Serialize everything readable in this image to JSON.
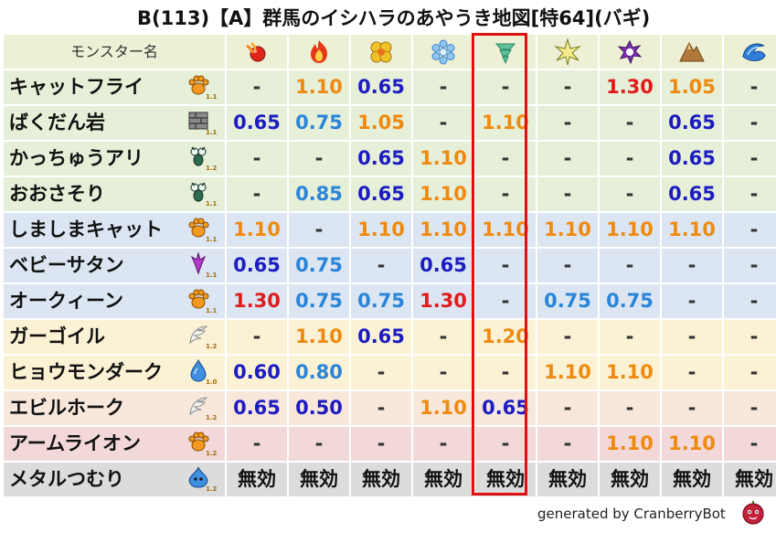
{
  "title": "B(113)【A】群馬のイシハラのあやうき地図[特64](バギ)",
  "header_label": "モンスター名",
  "columns": [
    {
      "icon": "fire-icon"
    },
    {
      "icon": "flame-icon"
    },
    {
      "icon": "explosion-icon"
    },
    {
      "icon": "ice-icon"
    },
    {
      "icon": "wind-icon"
    },
    {
      "icon": "lightning-icon"
    },
    {
      "icon": "darkness-icon"
    },
    {
      "icon": "earth-icon"
    },
    {
      "icon": "water-icon"
    }
  ],
  "highlighted_column": 4,
  "colors": {
    "header_bg": "#eef0d6",
    "row_green": "#e6efd8",
    "row_blue": "#dbe6f2",
    "row_yellow": "#fbf1d4",
    "row_peach": "#f8e8dc",
    "row_pink": "#f2d8d8",
    "row_gray": "#dcdcdc",
    "val_red": "#e11b1b",
    "val_orange": "#ee8a0f",
    "val_blue": "#2a84d8",
    "val_navy": "#1c1cc2",
    "val_dash": "#333333",
    "highlight": "#e01010"
  },
  "rows": [
    {
      "name": "キャットフライ",
      "family": "paw-icon",
      "level": "1.1",
      "bg": "green",
      "values": [
        "-",
        "1.10",
        "0.65",
        "-",
        "-",
        "-",
        "1.30",
        "1.05",
        "-"
      ]
    },
    {
      "name": "ばくだん岩",
      "family": "brick-icon",
      "level": "1.1",
      "bg": "green",
      "values": [
        "0.65",
        "0.75",
        "1.05",
        "-",
        "1.10",
        "-",
        "-",
        "0.65",
        "-"
      ]
    },
    {
      "name": "かっちゅうアリ",
      "family": "insect-icon",
      "level": "1.2",
      "bg": "green",
      "values": [
        "-",
        "-",
        "0.65",
        "1.10",
        "-",
        "-",
        "-",
        "0.65",
        "-"
      ]
    },
    {
      "name": "おおさそり",
      "family": "insect-icon",
      "level": "1.1",
      "bg": "green",
      "values": [
        "-",
        "0.85",
        "0.65",
        "1.10",
        "-",
        "-",
        "-",
        "0.65",
        "-"
      ]
    },
    {
      "name": "しましまキャット",
      "family": "paw-icon",
      "level": "1.1",
      "bg": "blue",
      "values": [
        "1.10",
        "-",
        "1.10",
        "1.10",
        "1.10",
        "1.10",
        "1.10",
        "1.10",
        "-"
      ]
    },
    {
      "name": "ベビーサタン",
      "family": "demon-icon",
      "level": "1.1",
      "bg": "blue",
      "values": [
        "0.65",
        "0.75",
        "-",
        "0.65",
        "-",
        "-",
        "-",
        "-",
        "-"
      ]
    },
    {
      "name": "オークィーン",
      "family": "paw-icon",
      "level": "1.1",
      "bg": "blue",
      "values": [
        "1.30",
        "0.75",
        "0.75",
        "1.30",
        "-",
        "0.75",
        "0.75",
        "-",
        "-"
      ]
    },
    {
      "name": "ガーゴイル",
      "family": "wing-icon",
      "level": "1.2",
      "bg": "yellow",
      "values": [
        "-",
        "1.10",
        "0.65",
        "-",
        "1.20",
        "-",
        "-",
        "-",
        "-"
      ]
    },
    {
      "name": "ヒョウモンダーク",
      "family": "drop-icon",
      "level": "1.0",
      "bg": "yellow",
      "values": [
        "0.60",
        "0.80",
        "-",
        "-",
        "-",
        "1.10",
        "1.10",
        "-",
        "-"
      ]
    },
    {
      "name": "エビルホーク",
      "family": "wing-icon",
      "level": "1.2",
      "bg": "peach",
      "values": [
        "0.65",
        "0.50",
        "-",
        "1.10",
        "0.65",
        "-",
        "-",
        "-",
        "-"
      ]
    },
    {
      "name": "アームライオン",
      "family": "paw-icon",
      "level": "1.2",
      "bg": "pink",
      "values": [
        "-",
        "-",
        "-",
        "-",
        "-",
        "-",
        "1.10",
        "1.10",
        "-"
      ]
    },
    {
      "name": "メタルつむり",
      "family": "slime-icon",
      "level": "1.2",
      "bg": "gray",
      "values": [
        "無効",
        "無効",
        "無効",
        "無効",
        "無効",
        "無効",
        "無効",
        "無効",
        "無効"
      ]
    }
  ],
  "footer": "generated by CranberryBot",
  "footer_icon": "cranberry-icon"
}
